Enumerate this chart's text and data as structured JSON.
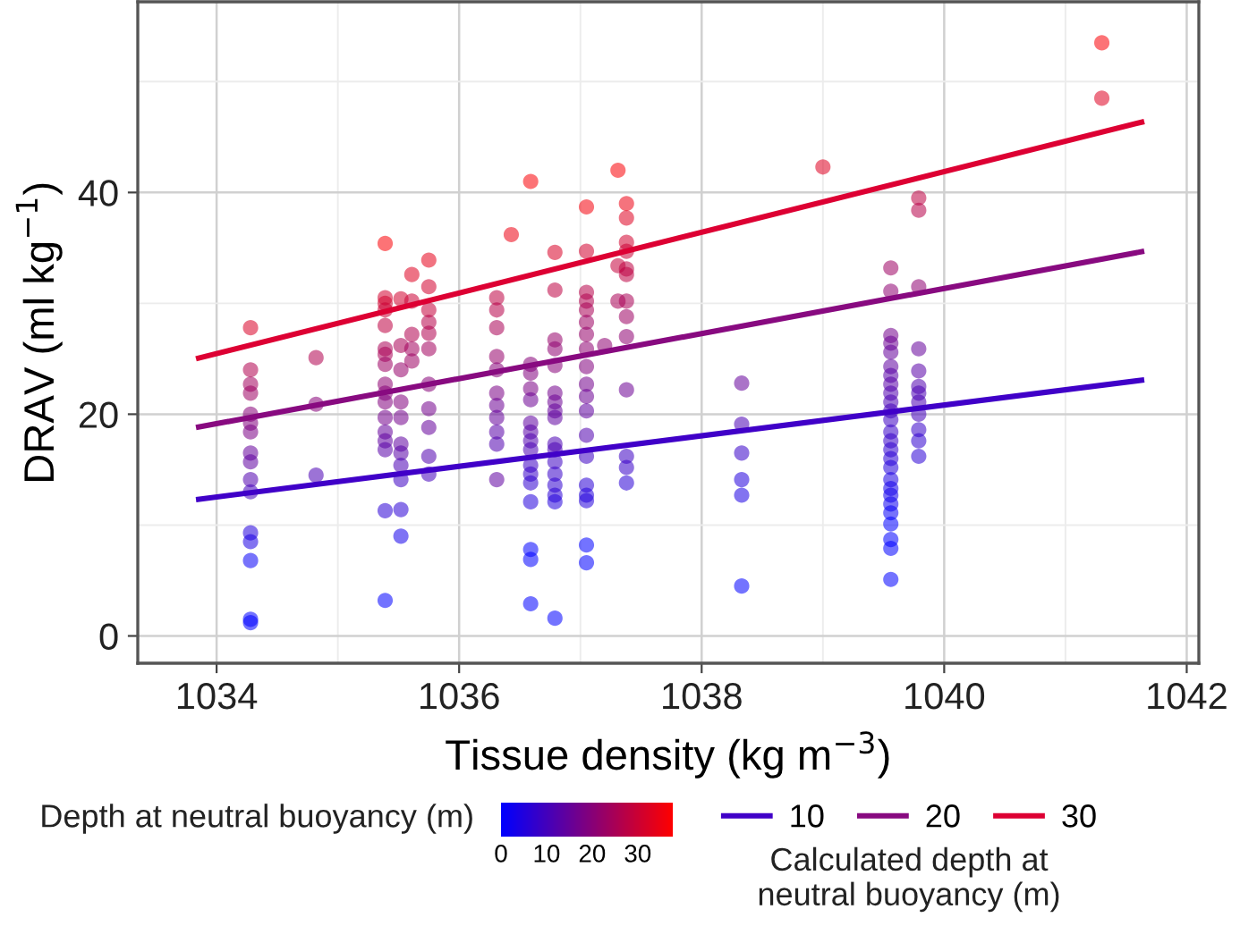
{
  "chart_data": {
    "type": "scatter",
    "xlabel": "Tissue density (kg m$^{−3}$)",
    "ylabel": "DRAV (ml kg$^{−1}$)",
    "xlim": [
      1033.35,
      1042.1
    ],
    "xticks": [
      1034,
      1036,
      1038,
      1040,
      1042
    ],
    "ylim": [
      -2.46,
      57.2
    ],
    "yticks": [
      0,
      20,
      40
    ],
    "grid": true,
    "legend": "bottom",
    "legend_title": "Calculated depth at\nneutral buoyancy (m)",
    "clabel": "Depth at neutral buoyancy (m)",
    "clim": [
      0,
      37.7
    ],
    "cticks": [
      0,
      10,
      20,
      30
    ],
    "marker": "circle",
    "series": [
      {
        "x": [
          1034.28,
          1034.28,
          1034.28,
          1034.28,
          1034.28,
          1034.28,
          1034.28,
          1034.28,
          1034.28,
          1034.28,
          1034.28,
          1034.28,
          1034.28,
          1034.28,
          1034.28,
          1034.28,
          1034.82,
          1034.82,
          1034.82,
          1035.39,
          1035.39,
          1035.39,
          1035.39,
          1035.39,
          1035.39,
          1035.39,
          1035.39,
          1035.39,
          1035.39,
          1035.39,
          1035.39,
          1035.39,
          1035.39,
          1035.39,
          1035.39,
          1035.39,
          1035.52,
          1035.52,
          1035.52,
          1035.52,
          1035.52,
          1035.52,
          1035.52,
          1035.52,
          1035.52,
          1035.52,
          1035.52,
          1035.61,
          1035.61,
          1035.61,
          1035.61,
          1035.61,
          1035.75,
          1035.75,
          1035.75,
          1035.75,
          1035.75,
          1035.75,
          1035.75,
          1035.75,
          1035.75,
          1035.75,
          1035.75,
          1036.31,
          1036.31,
          1036.31,
          1036.31,
          1036.31,
          1036.31,
          1036.31,
          1036.31,
          1036.31,
          1036.31,
          1036.31,
          1036.43,
          1036.59,
          1036.59,
          1036.59,
          1036.59,
          1036.59,
          1036.59,
          1036.59,
          1036.59,
          1036.59,
          1036.59,
          1036.59,
          1036.59,
          1036.59,
          1036.59,
          1036.59,
          1036.59,
          1036.79,
          1036.79,
          1036.79,
          1036.79,
          1036.79,
          1036.79,
          1036.79,
          1036.79,
          1036.79,
          1036.79,
          1036.79,
          1036.79,
          1036.79,
          1036.79,
          1036.79,
          1036.79,
          1036.79,
          1037.05,
          1037.05,
          1037.05,
          1037.05,
          1037.05,
          1037.05,
          1037.05,
          1037.05,
          1037.05,
          1037.05,
          1037.05,
          1037.05,
          1037.05,
          1037.05,
          1037.05,
          1037.05,
          1037.05,
          1037.05,
          1037.05,
          1037.2,
          1037.31,
          1037.31,
          1037.31,
          1037.38,
          1037.38,
          1037.38,
          1037.38,
          1037.38,
          1037.38,
          1037.38,
          1037.38,
          1037.38,
          1037.38,
          1037.38,
          1037.38,
          1037.38,
          1038.33,
          1038.33,
          1038.33,
          1038.33,
          1038.33,
          1038.33,
          1039.0,
          1039.56,
          1039.56,
          1039.56,
          1039.56,
          1039.56,
          1039.56,
          1039.56,
          1039.56,
          1039.56,
          1039.56,
          1039.56,
          1039.56,
          1039.56,
          1039.56,
          1039.56,
          1039.56,
          1039.56,
          1039.56,
          1039.56,
          1039.56,
          1039.56,
          1039.56,
          1039.56,
          1039.56,
          1039.56,
          1039.56,
          1039.79,
          1039.79,
          1039.79,
          1039.79,
          1039.79,
          1039.79,
          1039.79,
          1039.79,
          1039.79,
          1039.79,
          1039.79,
          1039.79,
          1041.3,
          1041.3
        ],
        "values": [
          27.8,
          24.0,
          22.7,
          21.9,
          20.0,
          19.2,
          18.4,
          16.5,
          15.7,
          14.1,
          13.0,
          9.3,
          8.5,
          6.8,
          1.5,
          1.2,
          25.1,
          20.9,
          14.5,
          35.4,
          30.5,
          30.0,
          29.4,
          28.0,
          25.9,
          25.4,
          24.5,
          22.7,
          21.9,
          21.1,
          19.7,
          18.4,
          17.6,
          16.8,
          11.3,
          3.2,
          30.4,
          26.2,
          24.0,
          21.1,
          19.7,
          17.3,
          16.5,
          15.4,
          14.1,
          11.4,
          9.0,
          32.6,
          30.2,
          27.2,
          25.9,
          24.8,
          33.9,
          31.5,
          29.4,
          28.3,
          27.3,
          25.9,
          22.7,
          20.5,
          18.8,
          16.2,
          14.6,
          30.5,
          29.4,
          27.8,
          25.2,
          24.0,
          21.9,
          20.8,
          19.7,
          18.4,
          17.3,
          14.1,
          36.2,
          41.0,
          24.5,
          23.7,
          22.3,
          21.3,
          19.2,
          18.4,
          17.6,
          16.8,
          15.4,
          14.6,
          13.8,
          12.1,
          7.8,
          6.9,
          2.9,
          34.6,
          31.2,
          26.7,
          25.9,
          24.4,
          21.9,
          21.1,
          20.3,
          19.7,
          17.3,
          16.8,
          15.7,
          14.6,
          13.6,
          12.7,
          12.1,
          1.6,
          38.7,
          34.7,
          31.0,
          30.2,
          29.4,
          28.3,
          27.2,
          25.9,
          24.3,
          22.7,
          21.6,
          20.3,
          18.1,
          16.2,
          13.6,
          12.7,
          12.2,
          8.2,
          6.6,
          26.2,
          42.0,
          33.4,
          30.2,
          39.0,
          37.7,
          35.5,
          34.7,
          33.1,
          32.6,
          30.2,
          28.8,
          27.0,
          22.2,
          16.2,
          15.2,
          13.8,
          22.8,
          19.1,
          16.5,
          14.1,
          12.7,
          4.5,
          42.3,
          33.2,
          31.1,
          27.1,
          26.4,
          25.6,
          24.3,
          23.5,
          22.7,
          21.9,
          21.1,
          20.3,
          19.5,
          18.4,
          17.6,
          16.8,
          16.0,
          15.2,
          14.1,
          13.3,
          12.7,
          11.9,
          11.1,
          10.1,
          8.7,
          7.9,
          5.1,
          39.5,
          38.4,
          31.5,
          25.9,
          23.9,
          22.5,
          21.9,
          21.1,
          20.0,
          18.6,
          17.6,
          16.2,
          53.5,
          48.5
        ],
        "colors": [
          "#d80027",
          "#b0004f",
          "#a2005d",
          "#9c0063",
          "#870078",
          "#81007e",
          "#7a0085",
          "#65009a",
          "#5f00a0",
          "#5100ae",
          "#4400bb",
          "#2200dd",
          "#1b00e4",
          "#0700f8",
          "#0000ff",
          "#0000ff",
          "#b0004f",
          "#870078",
          "#4a00b5",
          "#fa0005",
          "#d2002d",
          "#d2002d",
          "#cb0034",
          "#bd0042",
          "#a90056",
          "#a90056",
          "#9c0063",
          "#8e0071",
          "#870078",
          "#81007e",
          "#73008c",
          "#65009a",
          "#5f00a0",
          "#5800a7",
          "#2900d6",
          "#0000ff",
          "#d2002d",
          "#a90056",
          "#95006a",
          "#81007e",
          "#73008c",
          "#5f00a0",
          "#5800a7",
          "#4a00b5",
          "#3d00c2",
          "#2900d6",
          "#1400eb",
          "#df0020",
          "#cb0034",
          "#b0004f",
          "#a2005d",
          "#9c0063",
          "#e60019",
          "#d2002d",
          "#c4003b",
          "#b70048",
          "#b0004f",
          "#a2005d",
          "#870078",
          "#73008c",
          "#65009a",
          "#5100ae",
          "#4400bb",
          "#bd0042",
          "#b70048",
          "#a90056",
          "#95006a",
          "#870078",
          "#7a0085",
          "#6c0093",
          "#65009a",
          "#5800a7",
          "#5100ae",
          "#5f00a0",
          "#ed0012",
          "#fa0005",
          "#870078",
          "#81007e",
          "#7a0085",
          "#6c0093",
          "#5f00a0",
          "#5800a7",
          "#5100ae",
          "#4a00b5",
          "#3d00c2",
          "#3600c9",
          "#2f00d0",
          "#2200dd",
          "#0000ff",
          "#0000ff",
          "#0000ff",
          "#d80027",
          "#bd0042",
          "#95006a",
          "#8e0071",
          "#870078",
          "#73008c",
          "#6c0093",
          "#65009a",
          "#5f00a0",
          "#4a00b5",
          "#4a00b5",
          "#3d00c2",
          "#3600c9",
          "#2f00d0",
          "#2900d6",
          "#2200dd",
          "#0000ff",
          "#f4000b",
          "#d2002d",
          "#b70048",
          "#b0004f",
          "#a90056",
          "#9c0063",
          "#95006a",
          "#8e0071",
          "#81007e",
          "#73008c",
          "#6c0093",
          "#5f00a0",
          "#5100ae",
          "#3d00c2",
          "#2900d6",
          "#2200dd",
          "#2200dd",
          "#0000ff",
          "#0000ff",
          "#8e0071",
          "#fa0005",
          "#c4003b",
          "#a90056",
          "#ed0012",
          "#df0020",
          "#d2002d",
          "#cb0034",
          "#bd0042",
          "#bd0042",
          "#a90056",
          "#9c0063",
          "#8e0071",
          "#6c0093",
          "#3d00c2",
          "#3600c9",
          "#2900d6",
          "#65009a",
          "#4a00b5",
          "#3600c9",
          "#2200dd",
          "#1b00e4",
          "#0000ff",
          "#df0020",
          "#9c0063",
          "#8e0071",
          "#73008c",
          "#6c0093",
          "#65009a",
          "#5f00a0",
          "#5800a7",
          "#5800a7",
          "#5100ae",
          "#4a00b5",
          "#4400bb",
          "#3d00c2",
          "#3600c9",
          "#3600c9",
          "#2f00d0",
          "#2900d6",
          "#2200dd",
          "#1b00e4",
          "#1400eb",
          "#1400eb",
          "#0e00f1",
          "#0700f8",
          "#0000ff",
          "#0000ff",
          "#0000ff",
          "#0000ff",
          "#bd0042",
          "#b70048",
          "#8e0071",
          "#65009a",
          "#5800a7",
          "#5100ae",
          "#4a00b5",
          "#4a00b5",
          "#4400bb",
          "#3600c9",
          "#2f00d0",
          "#2900d6",
          "#fa0005",
          "#df0020"
        ]
      },
      {
        "type": "line",
        "name": "10",
        "color": "#4000c8",
        "x": [
          1033.83,
          1041.65
        ],
        "values": [
          12.3,
          23.1
        ],
        "marker": "none",
        "line_style": "solid"
      },
      {
        "type": "line",
        "name": "20",
        "color": "#880a80",
        "x": [
          1033.83,
          1041.65
        ],
        "values": [
          18.8,
          34.7
        ],
        "marker": "none",
        "line_style": "solid"
      },
      {
        "type": "line",
        "name": "30",
        "color": "#dd0033",
        "x": [
          1033.83,
          1041.65
        ],
        "values": [
          25.0,
          46.4
        ],
        "marker": "none",
        "line_style": "solid"
      }
    ]
  }
}
